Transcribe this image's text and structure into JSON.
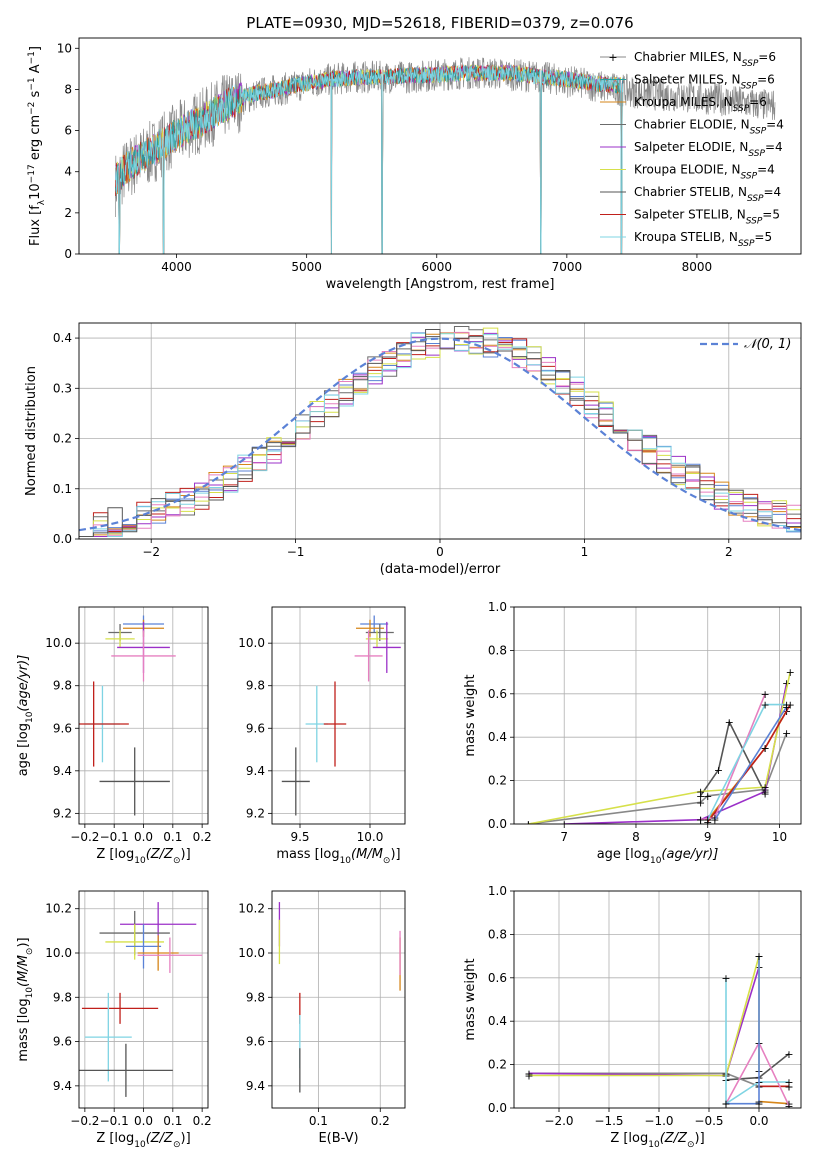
{
  "figure_title": "PLATE=0930, MJD=52618, FIBERID=0379, z=0.076",
  "colors": {
    "chabrier_miles": "#888888",
    "salpeter_miles": "#2a9d9d",
    "kroupa_miles": "#d6861a",
    "chabrier_elodie": "#6b6b6b",
    "salpeter_elodie": "#9b30c8",
    "kroupa_elodie": "#d6e04a",
    "chabrier_stelib": "#555555",
    "salpeter_stelib": "#c0201b",
    "kroupa_stelib": "#7fd4e3",
    "normal_curve": "#5b82d6",
    "grid": "#b0b0b0"
  },
  "chart_data": [
    {
      "id": "spectrum",
      "type": "line",
      "title": "PLATE=0930, MJD=52618, FIBERID=0379, z=0.076",
      "xlabel": "wavelength [Angstrom, rest frame]",
      "ylabel_main": "Flux [f",
      "ylabel_sub": "λ",
      "ylabel_mid": "10",
      "ylabel_sup1": "−17",
      "ylabel_rest": " erg cm",
      "ylabel_sup2": "−2",
      "ylabel_rest2": " s",
      "ylabel_sup3": "−1",
      "ylabel_rest3": " A",
      "ylabel_sup4": "−1",
      "ylabel_end": "]",
      "xlim": [
        3250,
        8800
      ],
      "ylim": [
        0,
        10.5
      ],
      "xticks": [
        4000,
        5000,
        6000,
        7000,
        8000
      ],
      "yticks": [
        0,
        2,
        4,
        6,
        8,
        10
      ],
      "grid": false,
      "legend_position": "right",
      "legend": [
        {
          "name": "Chabrier MILES, N",
          "sub": "SSP",
          "tail": "=6",
          "color": "#888888",
          "marker": "plus"
        },
        {
          "name": "Salpeter MILES, N",
          "sub": "SSP",
          "tail": "=6",
          "color": "#2a9d9d",
          "marker": "line"
        },
        {
          "name": "Kroupa MILES, N",
          "sub": "SSP",
          "tail": "=6",
          "color": "#d6861a",
          "marker": "line"
        },
        {
          "name": "Chabrier ELODIE, N",
          "sub": "SSP",
          "tail": "=4",
          "color": "#6b6b6b",
          "marker": "line"
        },
        {
          "name": "Salpeter ELODIE, N",
          "sub": "SSP",
          "tail": "=4",
          "color": "#9b30c8",
          "marker": "line"
        },
        {
          "name": "Kroupa ELODIE, N",
          "sub": "SSP",
          "tail": "=4",
          "color": "#d6e04a",
          "marker": "line"
        },
        {
          "name": "Chabrier STELIB, N",
          "sub": "SSP",
          "tail": "=4",
          "color": "#555555",
          "marker": "line"
        },
        {
          "name": "Salpeter STELIB, N",
          "sub": "SSP",
          "tail": "=5",
          "color": "#c0201b",
          "marker": "line"
        },
        {
          "name": "Kroupa STELIB, N",
          "sub": "SSP",
          "tail": "=5",
          "color": "#7fd4e3",
          "marker": "line"
        }
      ],
      "model_envelope": {
        "x": [
          3530,
          3600,
          3700,
          3800,
          3900,
          4000,
          4100,
          4200,
          4300,
          4400,
          4500,
          4600,
          4700,
          4800,
          4900,
          5000,
          5200,
          5400,
          5600,
          5800,
          6000,
          6200,
          6400,
          6600,
          6800,
          7000,
          7200,
          7400
        ],
        "y": [
          3.6,
          4.1,
          4.6,
          5.0,
          5.4,
          5.8,
          6.2,
          6.5,
          6.9,
          7.3,
          7.6,
          7.8,
          7.9,
          8.0,
          8.2,
          8.3,
          8.5,
          8.6,
          8.6,
          8.7,
          8.7,
          8.8,
          8.8,
          8.8,
          8.6,
          8.5,
          8.3,
          8.2
        ]
      },
      "data_envelope": {
        "x": [
          3530,
          3600,
          3700,
          3800,
          3900,
          4000,
          4100,
          4200,
          4300,
          4400,
          4500,
          4600,
          4700,
          4800,
          4900,
          5000,
          5200,
          5400,
          5600,
          5800,
          6000,
          6200,
          6400,
          6600,
          6800,
          7000,
          7200,
          7400,
          7600,
          7800,
          8000,
          8200,
          8400,
          8600
        ],
        "y": [
          3.4,
          4.0,
          4.5,
          4.9,
          5.4,
          5.8,
          6.2,
          6.5,
          6.9,
          7.3,
          7.5,
          7.7,
          7.9,
          8.0,
          8.1,
          8.3,
          8.5,
          8.6,
          8.6,
          8.6,
          8.7,
          8.8,
          8.8,
          8.7,
          8.6,
          8.4,
          8.2,
          8.0,
          7.8,
          7.7,
          7.6,
          7.5,
          7.3,
          7.2
        ]
      },
      "dips": [
        3560,
        3900,
        5190,
        5580,
        6800,
        7420
      ]
    },
    {
      "id": "residuals",
      "type": "histogram",
      "xlabel": "(data-model)/error",
      "ylabel": "Normed distribution",
      "xlim": [
        -2.5,
        2.5
      ],
      "ylim": [
        0,
        0.43
      ],
      "xticks": [
        -2,
        -1,
        0,
        1,
        2
      ],
      "yticks": [
        0.0,
        0.1,
        0.2,
        0.3,
        0.4
      ],
      "grid": true,
      "legend_position": "top-right",
      "legend_label": "𝒩(0, 1)",
      "normal": {
        "mu": 0,
        "sigma": 1
      },
      "bin_width": 0.1,
      "bin_start": -2.5
    },
    {
      "id": "age_vs_Z",
      "type": "errorbar",
      "xlabel": "Z [log",
      "xlabel_sub": "10",
      "xlabel_rest": "(Z/Z",
      "xlabel_sub2": "⊙",
      "xlabel_end": ")]",
      "ylabel": "age  [log",
      "ylabel_sub": "10",
      "ylabel_rest": "(age/yr)]",
      "xlim": [
        -0.22,
        0.22
      ],
      "ylim": [
        9.15,
        10.17
      ],
      "xticks": [
        -0.2,
        -0.1,
        0.0,
        0.1,
        0.2
      ],
      "yticks": [
        9.2,
        9.4,
        9.6,
        9.8,
        10.0
      ],
      "grid": true,
      "points": [
        {
          "color": "#5b82d6",
          "x": 0.0,
          "xerr": 0.07,
          "y": 10.09,
          "yerr": 0.04
        },
        {
          "color": "#d6861a",
          "x": 0.0,
          "xerr": 0.07,
          "y": 10.07,
          "yerr": 0.04
        },
        {
          "color": "#6b6b6b",
          "x": -0.08,
          "xerr": 0.04,
          "y": 10.05,
          "yerr": 0.04
        },
        {
          "color": "#d6e04a",
          "x": -0.08,
          "xerr": 0.05,
          "y": 10.02,
          "yerr": 0.04
        },
        {
          "color": "#9b30c8",
          "x": 0.0,
          "xerr": 0.09,
          "y": 9.98,
          "yerr": 0.12
        },
        {
          "color": "#e680c0",
          "x": 0.0,
          "xerr": 0.11,
          "y": 9.94,
          "yerr": 0.12
        },
        {
          "color": "#7fd4e3",
          "x": -0.14,
          "xerr": 0.06,
          "y": 9.62,
          "yerr": 0.18
        },
        {
          "color": "#c0201b",
          "x": -0.17,
          "xerr": 0.12,
          "y": 9.62,
          "yerr": 0.2
        },
        {
          "color": "#555555",
          "x": -0.03,
          "xerr": 0.12,
          "y": 9.35,
          "yerr": 0.16
        }
      ]
    },
    {
      "id": "age_vs_mass",
      "type": "errorbar",
      "xlabel": "mass [log",
      "xlabel_sub": "10",
      "xlabel_rest": "(M/M",
      "xlabel_sub2": "⊙",
      "xlabel_end": ")]",
      "xlim": [
        9.3,
        10.25
      ],
      "ylim": [
        9.15,
        10.17
      ],
      "xticks": [
        9.5,
        10.0
      ],
      "yticks": [
        9.2,
        9.4,
        9.6,
        9.8,
        10.0
      ],
      "grid": true,
      "points": [
        {
          "color": "#5b82d6",
          "x": 10.03,
          "xerr": 0.1,
          "y": 10.09,
          "yerr": 0.04
        },
        {
          "color": "#d6861a",
          "x": 10.0,
          "xerr": 0.1,
          "y": 10.07,
          "yerr": 0.04
        },
        {
          "color": "#6b6b6b",
          "x": 10.07,
          "xerr": 0.1,
          "y": 10.05,
          "yerr": 0.04
        },
        {
          "color": "#d6e04a",
          "x": 10.05,
          "xerr": 0.08,
          "y": 10.02,
          "yerr": 0.04
        },
        {
          "color": "#9b30c8",
          "x": 10.12,
          "xerr": 0.1,
          "y": 9.98,
          "yerr": 0.12
        },
        {
          "color": "#e680c0",
          "x": 9.99,
          "xerr": 0.1,
          "y": 9.94,
          "yerr": 0.12
        },
        {
          "color": "#7fd4e3",
          "x": 9.62,
          "xerr": 0.08,
          "y": 9.62,
          "yerr": 0.18
        },
        {
          "color": "#c0201b",
          "x": 9.75,
          "xerr": 0.08,
          "y": 9.62,
          "yerr": 0.2
        },
        {
          "color": "#555555",
          "x": 9.47,
          "xerr": 0.1,
          "y": 9.35,
          "yerr": 0.16
        }
      ]
    },
    {
      "id": "weight_vs_age",
      "type": "line",
      "xlabel": "age  [log",
      "xlabel_sub": "10",
      "xlabel_rest": "(age/yr)]",
      "ylabel": "mass weight",
      "xlim": [
        6.3,
        10.3
      ],
      "ylim": [
        0,
        1.0
      ],
      "xticks": [
        7,
        8,
        9,
        10
      ],
      "yticks": [
        0.0,
        0.2,
        0.4,
        0.6,
        0.8,
        1.0
      ],
      "grid": true,
      "series": [
        {
          "color": "#555555",
          "x": [
            8.9,
            9.15,
            9.3,
            9.8
          ],
          "y": [
            0.13,
            0.25,
            0.47,
            0.14
          ]
        },
        {
          "color": "#888888",
          "x": [
            6.5,
            8.9,
            9.0,
            9.8,
            10.1
          ],
          "y": [
            0.0,
            0.1,
            0.13,
            0.16,
            0.42
          ]
        },
        {
          "color": "#9b30c8",
          "x": [
            7.0,
            8.9,
            9.8,
            10.1
          ],
          "y": [
            0.0,
            0.02,
            0.15,
            0.65
          ]
        },
        {
          "color": "#d6e04a",
          "x": [
            6.5,
            8.9,
            9.8,
            10.15
          ],
          "y": [
            0.0,
            0.15,
            0.17,
            0.7
          ]
        },
        {
          "color": "#d6861a",
          "x": [
            9.0,
            9.8,
            10.1
          ],
          "y": [
            0.02,
            0.35,
            0.52
          ]
        },
        {
          "color": "#c0201b",
          "x": [
            9.0,
            9.8,
            10.15
          ],
          "y": [
            0.01,
            0.35,
            0.55
          ]
        },
        {
          "color": "#e680c0",
          "x": [
            8.9,
            9.1,
            9.8
          ],
          "y": [
            0.02,
            0.03,
            0.6
          ]
        },
        {
          "color": "#7fd4e3",
          "x": [
            9.0,
            9.8,
            10.1
          ],
          "y": [
            0.02,
            0.55,
            0.55
          ]
        },
        {
          "color": "#5b82d6",
          "x": [
            9.1,
            10.1
          ],
          "y": [
            0.02,
            0.54
          ]
        }
      ]
    },
    {
      "id": "mass_vs_Z",
      "type": "errorbar",
      "xlabel": "Z [log",
      "xlabel_sub": "10",
      "xlabel_rest": "(Z/Z",
      "xlabel_sub2": "⊙",
      "xlabel_end": ")]",
      "ylabel": "mass [log",
      "ylabel_sub": "10",
      "ylabel_rest": "(M/M",
      "ylabel_sub2": "⊙",
      "ylabel_end": ")]",
      "xlim": [
        -0.22,
        0.22
      ],
      "ylim": [
        9.3,
        10.28
      ],
      "xticks": [
        -0.2,
        -0.1,
        0.0,
        0.1,
        0.2
      ],
      "yticks": [
        9.4,
        9.6,
        9.8,
        10.0,
        10.2
      ],
      "grid": true,
      "points": [
        {
          "color": "#9b30c8",
          "x": 0.05,
          "xerr": 0.13,
          "y": 10.13,
          "yerr": 0.1
        },
        {
          "color": "#6b6b6b",
          "x": -0.03,
          "xerr": 0.12,
          "y": 10.09,
          "yerr": 0.1
        },
        {
          "color": "#d6e04a",
          "x": -0.03,
          "xerr": 0.1,
          "y": 10.05,
          "yerr": 0.08
        },
        {
          "color": "#5b82d6",
          "x": 0.0,
          "xerr": 0.06,
          "y": 10.03,
          "yerr": 0.1
        },
        {
          "color": "#d6861a",
          "x": 0.05,
          "xerr": 0.07,
          "y": 10.0,
          "yerr": 0.08
        },
        {
          "color": "#e680c0",
          "x": 0.09,
          "xerr": 0.11,
          "y": 9.99,
          "yerr": 0.08
        },
        {
          "color": "#c0201b",
          "x": -0.08,
          "xerr": 0.13,
          "y": 9.75,
          "yerr": 0.07
        },
        {
          "color": "#7fd4e3",
          "x": -0.12,
          "xerr": 0.08,
          "y": 9.62,
          "yerr": 0.2
        },
        {
          "color": "#555555",
          "x": -0.06,
          "xerr": 0.16,
          "y": 9.47,
          "yerr": 0.12
        }
      ]
    },
    {
      "id": "mass_vs_ebv",
      "type": "errorbar",
      "xlabel": "E(B-V)",
      "xlim": [
        0.025,
        0.24
      ],
      "ylim": [
        9.3,
        10.28
      ],
      "xticks": [
        0.1,
        0.2
      ],
      "yticks": [
        9.4,
        9.6,
        9.8,
        10.0,
        10.2
      ],
      "grid": true,
      "points": [
        {
          "color": "#9b30c8",
          "x": 0.037,
          "y": 10.13,
          "yerr": 0.1
        },
        {
          "color": "#d6e04a",
          "x": 0.037,
          "y": 10.05,
          "yerr": 0.1
        },
        {
          "color": "#c0201b",
          "x": 0.07,
          "y": 9.75,
          "yerr": 0.07
        },
        {
          "color": "#7fd4e3",
          "x": 0.07,
          "y": 9.6,
          "yerr": 0.12
        },
        {
          "color": "#555555",
          "x": 0.07,
          "y": 9.47,
          "yerr": 0.1
        },
        {
          "color": "#d6861a",
          "x": 0.232,
          "y": 9.95,
          "yerr": 0.12
        },
        {
          "color": "#e680c0",
          "x": 0.232,
          "y": 10.0,
          "yerr": 0.1
        }
      ]
    },
    {
      "id": "weight_vs_Z",
      "type": "line",
      "xlabel": "Z [log",
      "xlabel_sub": "10",
      "xlabel_rest": "(Z/Z",
      "xlabel_sub2": "⊙",
      "xlabel_end": ")]",
      "ylabel": "mass weight",
      "xlim": [
        -2.45,
        0.42
      ],
      "ylim": [
        0,
        1.0
      ],
      "xticks": [
        -2.0,
        -1.5,
        -1.0,
        -0.5,
        0.0
      ],
      "yticks": [
        0.0,
        0.2,
        0.4,
        0.6,
        0.8,
        1.0
      ],
      "grid": true,
      "series": [
        {
          "color": "#555555",
          "x": [
            -0.33,
            0.0,
            0.3
          ],
          "y": [
            0.13,
            0.14,
            0.25
          ]
        },
        {
          "color": "#888888",
          "x": [
            -2.3,
            -0.33,
            0.0,
            0.3
          ],
          "y": [
            0.16,
            0.16,
            0.1,
            0.1
          ]
        },
        {
          "color": "#9b30c8",
          "x": [
            -2.3,
            -0.33,
            0.0
          ],
          "y": [
            0.16,
            0.15,
            0.65
          ]
        },
        {
          "color": "#d6e04a",
          "x": [
            -2.3,
            -0.33,
            0.0,
            0.0
          ],
          "y": [
            0.15,
            0.15,
            0.7,
            0.17
          ]
        },
        {
          "color": "#c0201b",
          "x": [
            0.0,
            0.3
          ],
          "y": [
            0.1,
            0.1
          ]
        },
        {
          "color": "#d6861a",
          "x": [
            0.0,
            0.3
          ],
          "y": [
            0.03,
            0.02
          ]
        },
        {
          "color": "#e680c0",
          "x": [
            -0.33,
            0.0,
            0.3
          ],
          "y": [
            0.02,
            0.3,
            0.01
          ]
        },
        {
          "color": "#7fd4e3",
          "x": [
            -0.33,
            -0.33,
            0.0,
            0.3
          ],
          "y": [
            0.6,
            0.02,
            0.12,
            0.12
          ]
        },
        {
          "color": "#5b82d6",
          "x": [
            -0.33,
            0.0,
            0.0
          ],
          "y": [
            0.02,
            0.02,
            0.7
          ]
        }
      ]
    }
  ]
}
